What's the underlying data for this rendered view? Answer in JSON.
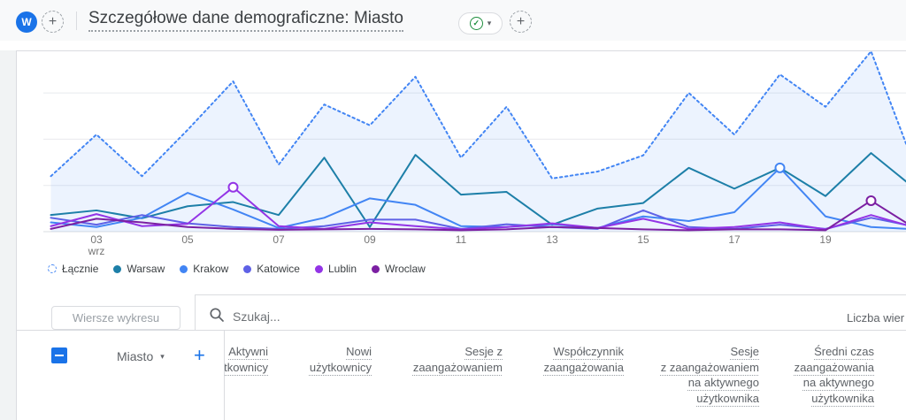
{
  "header": {
    "avatar_text": "W",
    "title": "Szczegółowe dane demograficzne: Miasto"
  },
  "icons": {
    "plus": "+",
    "caret_down": "▾",
    "check": "✓"
  },
  "chart_data": {
    "type": "line",
    "x": [
      2,
      3,
      4,
      5,
      6,
      7,
      8,
      9,
      10,
      11,
      12,
      13,
      14,
      15,
      16,
      17,
      18,
      19,
      20,
      21
    ],
    "x_ticks": [
      {
        "day": 3,
        "label": "03",
        "sub": "wrz"
      },
      {
        "day": 5,
        "label": "05"
      },
      {
        "day": 7,
        "label": "07"
      },
      {
        "day": 9,
        "label": "09"
      },
      {
        "day": 11,
        "label": "11"
      },
      {
        "day": 13,
        "label": "13"
      },
      {
        "day": 15,
        "label": "15"
      },
      {
        "day": 17,
        "label": "17"
      },
      {
        "day": 19,
        "label": "19"
      }
    ],
    "ylabel": "",
    "xlabel": "",
    "ylim": [
      0,
      4.2
    ],
    "grid": "on",
    "legend_position": "bottom",
    "series": [
      {
        "name": "Łącznie",
        "color": "#4285f4",
        "style": "dashed",
        "area": true,
        "values": [
          1.2,
          2.1,
          1.2,
          2.2,
          3.25,
          1.45,
          2.75,
          2.3,
          3.35,
          1.6,
          2.7,
          1.15,
          1.3,
          1.65,
          3.0,
          2.1,
          3.4,
          2.7,
          3.9,
          1.3
        ]
      },
      {
        "name": "Warsaw",
        "color": "#1d7fa8",
        "style": "solid",
        "area": false,
        "values": [
          0.36,
          0.46,
          0.29,
          0.55,
          0.64,
          0.36,
          1.6,
          0.1,
          1.66,
          0.8,
          0.86,
          0.15,
          0.5,
          0.62,
          1.38,
          0.93,
          1.38,
          0.77,
          1.7,
          0.9
        ]
      },
      {
        "name": "Krakow",
        "color": "#4285f4",
        "style": "solid",
        "area": false,
        "values": [
          0.2,
          0.1,
          0.3,
          0.84,
          0.48,
          0.08,
          0.3,
          0.72,
          0.58,
          0.12,
          0.1,
          0.16,
          0.08,
          0.33,
          0.23,
          0.42,
          1.38,
          0.33,
          0.1,
          0.05
        ]
      },
      {
        "name": "Katowice",
        "color": "#5e61e6",
        "style": "solid",
        "area": false,
        "values": [
          0.3,
          0.15,
          0.36,
          0.18,
          0.1,
          0.06,
          0.12,
          0.26,
          0.26,
          0.06,
          0.16,
          0.1,
          0.06,
          0.46,
          0.1,
          0.06,
          0.15,
          0.06,
          0.3,
          0.1
        ]
      },
      {
        "name": "Lublin",
        "color": "#9334e6",
        "style": "solid",
        "area": false,
        "values": [
          0.12,
          0.38,
          0.12,
          0.17,
          0.96,
          0.12,
          0.06,
          0.2,
          0.12,
          0.05,
          0.1,
          0.18,
          0.08,
          0.28,
          0.06,
          0.1,
          0.2,
          0.05,
          0.36,
          0.08
        ]
      },
      {
        "name": "Wroclaw",
        "color": "#7b1fa2",
        "style": "solid",
        "area": false,
        "values": [
          0.06,
          0.28,
          0.2,
          0.1,
          0.06,
          0.04,
          0.05,
          0.06,
          0.05,
          0.03,
          0.05,
          0.1,
          0.08,
          0.05,
          0.03,
          0.05,
          0.05,
          0.03,
          0.67,
          0.05
        ]
      }
    ],
    "markers": [
      {
        "series": "Lublin",
        "day": 6
      },
      {
        "series": "Krakow",
        "day": 18
      },
      {
        "series": "Wroclaw",
        "day": 20
      }
    ]
  },
  "toolbar": {
    "rows_button_label": "Wiersze wykresu",
    "search_placeholder": "Szukaj...",
    "rows_count_label": "Liczba wier"
  },
  "table": {
    "dimension_label": "Miasto",
    "columns": [
      {
        "label": "Aktywni\nużytkownicy"
      },
      {
        "label": "Nowi\nużytkownicy"
      },
      {
        "label": "Sesje z\nzaangażowaniem"
      },
      {
        "label": "Współczynnik\nzaangażowania"
      },
      {
        "label": "Sesje\nz zaangażowaniem\nna aktywnego\nużytkownika"
      },
      {
        "label": "Średni czas\nzaangażowania\nna aktywnego\nużytkownika"
      }
    ]
  }
}
